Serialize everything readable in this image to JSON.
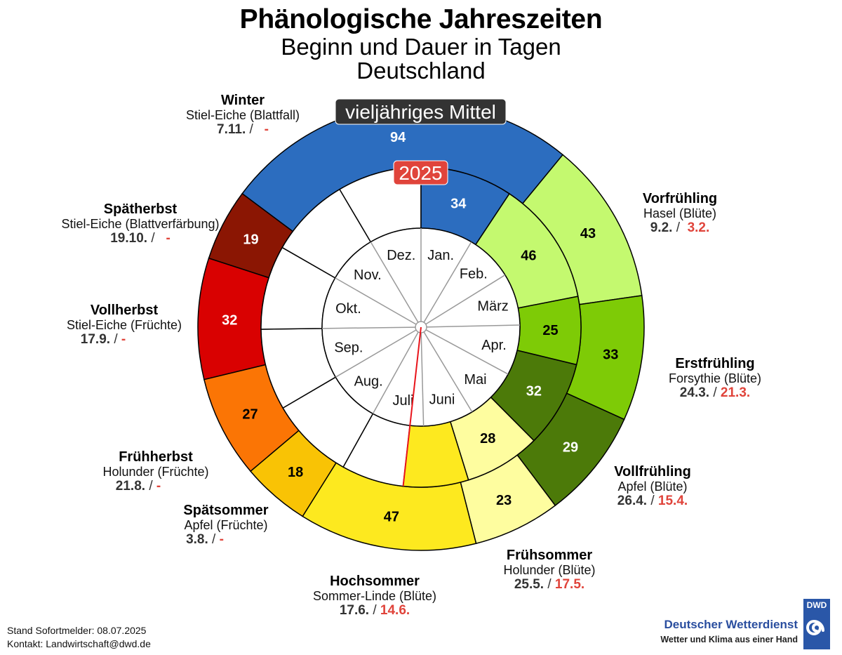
{
  "header": {
    "title": "Phänologische Jahreszeiten",
    "subtitle": "Beginn und Dauer in Tagen",
    "region": "Deutschland"
  },
  "ring_labels": {
    "outer": "vieljähriges Mittel",
    "inner": "2025"
  },
  "months": [
    "Jan.",
    "Feb.",
    "März",
    "Apr.",
    "Mai",
    "Juni",
    "Juli",
    "Aug.",
    "Sep.",
    "Okt.",
    "Nov.",
    "Dez."
  ],
  "seasons": [
    {
      "name": "Vorfrühling",
      "plant": "Hasel (Blüte)",
      "mean_start": "9.2.",
      "current_start": "3.2.",
      "color": "#c4f96f",
      "text_color": "#000000"
    },
    {
      "name": "Erstfrühling",
      "plant": "Forsythie (Blüte)",
      "mean_start": "24.3.",
      "current_start": "21.3.",
      "color": "#7ecb06",
      "text_color": "#000000"
    },
    {
      "name": "Vollfrühling",
      "plant": "Apfel (Blüte)",
      "mean_start": "26.4.",
      "current_start": "15.4.",
      "color": "#4c7a09",
      "text_color": "#ffffff"
    },
    {
      "name": "Frühsommer",
      "plant": "Holunder (Blüte)",
      "mean_start": "25.5.",
      "current_start": "17.5.",
      "color": "#fefd9f",
      "text_color": "#000000"
    },
    {
      "name": "Hochsommer",
      "plant": "Sommer-Linde (Blüte)",
      "mean_start": "17.6.",
      "current_start": "14.6.",
      "color": "#fde91f",
      "text_color": "#000000"
    },
    {
      "name": "Spätsommer",
      "plant": "Apfel (Früchte)",
      "mean_start": "3.8.",
      "current_start": "-",
      "color": "#f9c305",
      "text_color": "#000000"
    },
    {
      "name": "Frühherbst",
      "plant": "Holunder (Früchte)",
      "mean_start": "21.8.",
      "current_start": "-",
      "color": "#fb7505",
      "text_color": "#000000"
    },
    {
      "name": "Vollherbst",
      "plant": "Stiel-Eiche (Früchte)",
      "mean_start": "17.9.",
      "current_start": "-",
      "color": "#d90101",
      "text_color": "#ffffff"
    },
    {
      "name": "Spätherbst",
      "plant": "Stiel-Eiche (Blattverfärbung)",
      "mean_start": "19.10.",
      "current_start": "-",
      "color": "#8b1603",
      "text_color": "#ffffff"
    },
    {
      "name": "Winter",
      "plant": "Stiel-Eiche (Blattfall)",
      "mean_start": "7.11.",
      "current_start": "-",
      "color": "#2c6dbf",
      "text_color": "#ffffff"
    }
  ],
  "chart_data": {
    "type": "pie",
    "subtype": "radial-calendar (two concentric rings)",
    "title": "Phänologische Jahreszeiten",
    "subtitle": "Beginn und Dauer in Tagen – Deutschland",
    "orientation": "clockwise, 1 January at top",
    "months": [
      "Jan.",
      "Feb.",
      "März",
      "Apr.",
      "Mai",
      "Juni",
      "Juli",
      "Aug.",
      "Sep.",
      "Okt.",
      "Nov.",
      "Dez."
    ],
    "series": [
      {
        "name": "vieljähriges Mittel",
        "ring": "outer",
        "segments": [
          {
            "season": "Winter",
            "start_doy": 311,
            "days": 94
          },
          {
            "season": "Vorfrühling",
            "start_doy": 40,
            "days": 43
          },
          {
            "season": "Erstfrühling",
            "start_doy": 83,
            "days": 33
          },
          {
            "season": "Vollfrühling",
            "start_doy": 116,
            "days": 29
          },
          {
            "season": "Frühsommer",
            "start_doy": 145,
            "days": 23
          },
          {
            "season": "Hochsommer",
            "start_doy": 168,
            "days": 47
          },
          {
            "season": "Spätsommer",
            "start_doy": 215,
            "days": 18
          },
          {
            "season": "Frühherbst",
            "start_doy": 233,
            "days": 27
          },
          {
            "season": "Vollherbst",
            "start_doy": 260,
            "days": 32
          },
          {
            "season": "Spätherbst",
            "start_doy": 292,
            "days": 19
          }
        ]
      },
      {
        "name": "2025",
        "ring": "inner",
        "segments": [
          {
            "season": "Winter",
            "start_doy": 0,
            "days": 34
          },
          {
            "season": "Vorfrühling",
            "start_doy": 34,
            "days": 46
          },
          {
            "season": "Erstfrühling",
            "start_doy": 80,
            "days": 25
          },
          {
            "season": "Vollfrühling",
            "start_doy": 105,
            "days": 32
          },
          {
            "season": "Frühsommer",
            "start_doy": 137,
            "days": 28
          },
          {
            "season": "Hochsommer",
            "start_doy": 165,
            "days": 24,
            "label": ""
          }
        ]
      }
    ],
    "current_date_marker": {
      "date": "08.07.2025",
      "doy": 189,
      "color": "#e8141b"
    }
  },
  "footer": {
    "status": "Stand Sofortmelder: 08.07.2025",
    "contact": "Kontakt: Landwirtschaft@dwd.de"
  },
  "logo": {
    "org": "Deutscher Wetterdienst",
    "slogan": "Wetter und Klima aus einer Hand",
    "badge": "DWD"
  }
}
